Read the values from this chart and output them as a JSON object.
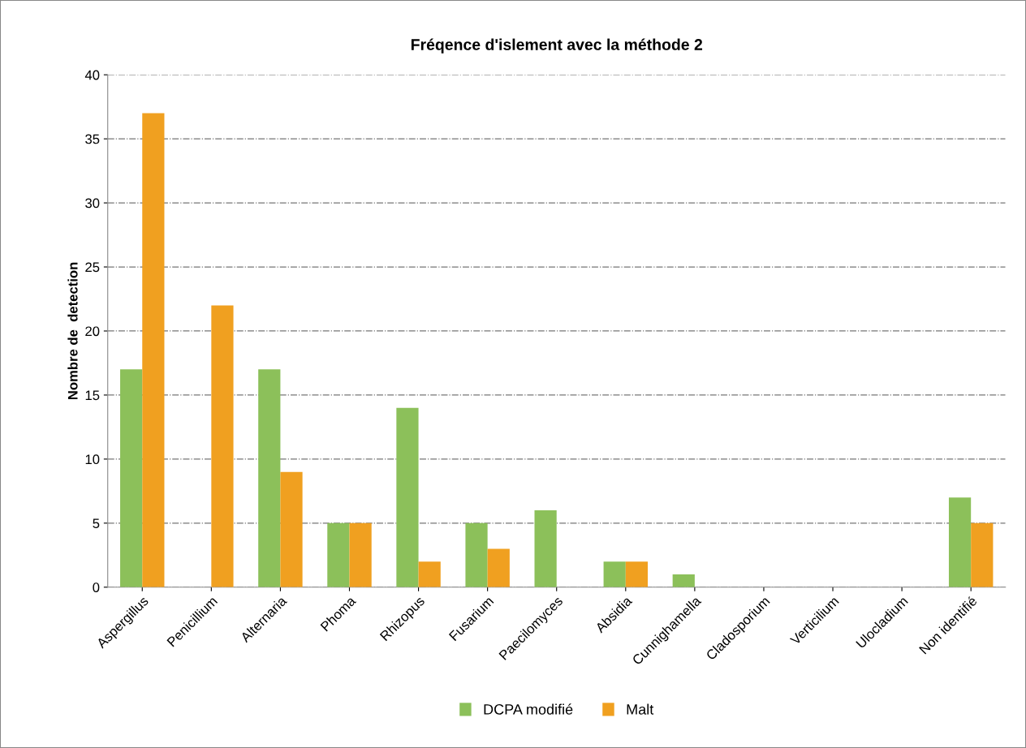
{
  "chart_data": {
    "type": "bar",
    "title": "Fréqence d'islement avec la méthode 2",
    "ylabel": "Nombre de  detection",
    "categories": [
      "Aspergillus",
      "Penicillium",
      "Alternaria",
      "Phoma",
      "Rhizopus",
      "Fusarium",
      "Paecilomyces",
      "Absidia",
      "Cunnighamella",
      "Cladosporium",
      "Verticilium",
      "Ulocladium",
      "Non identifié"
    ],
    "series": [
      {
        "name": "DCPA modifié",
        "color": "#8cc05a",
        "values": [
          17,
          0,
          17,
          5,
          14,
          5,
          6,
          2,
          1,
          0,
          0,
          0,
          7
        ]
      },
      {
        "name": "Malt",
        "color": "#f0a020",
        "values": [
          37,
          22,
          9,
          5,
          2,
          3,
          0,
          2,
          0,
          0,
          0,
          0,
          5
        ]
      }
    ],
    "ylim": [
      0,
      40
    ],
    "yticks": [
      0,
      5,
      10,
      15,
      20,
      25,
      30,
      35,
      40
    ],
    "grid": "y",
    "legend": "bottom"
  }
}
